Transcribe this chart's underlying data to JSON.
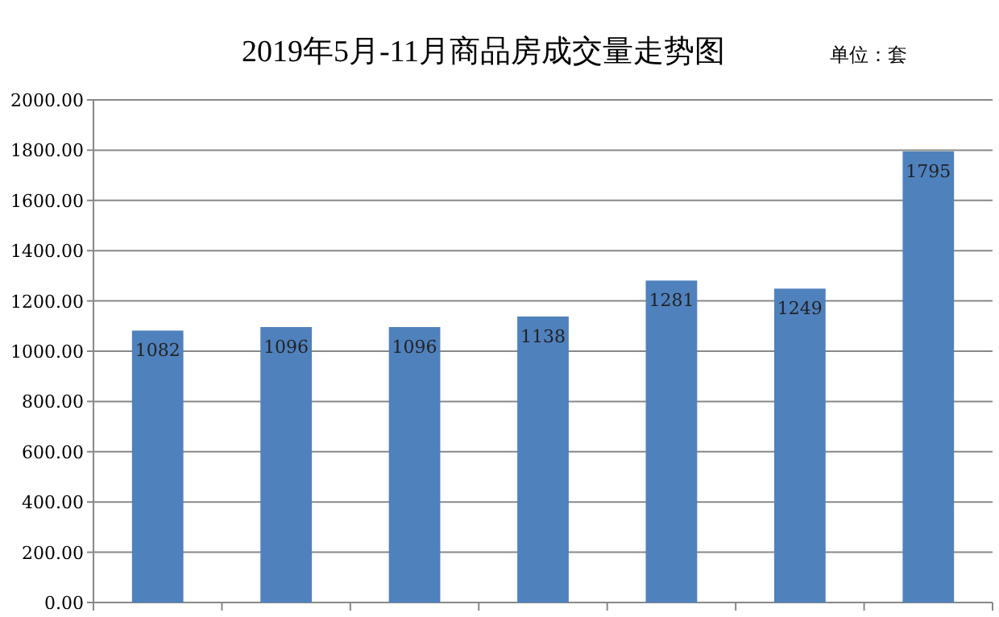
{
  "chart_data": {
    "type": "bar",
    "title": "2019年5月-11月商品房成交量走势图",
    "annotations": [
      "单位：套"
    ],
    "categories": [
      null,
      null,
      null,
      null,
      null,
      null,
      null
    ],
    "values": [
      1082,
      1096,
      1096,
      1138,
      1281,
      1249,
      1795
    ],
    "color": "#4f81bd",
    "data_labels": true,
    "grid": "y",
    "ylim": [
      0,
      2000
    ],
    "yticks": [
      {
        "value": 0,
        "label": "0.00"
      },
      {
        "value": 200,
        "label": "200.00"
      },
      {
        "value": 400,
        "label": "400.00"
      },
      {
        "value": 600,
        "label": "600.00"
      },
      {
        "value": 800,
        "label": "800.00"
      },
      {
        "value": 1000,
        "label": "1000.00"
      },
      {
        "value": 1200,
        "label": "1200.00"
      },
      {
        "value": 1400,
        "label": "1400.00"
      },
      {
        "value": 1600,
        "label": "1600.00"
      },
      {
        "value": 1800,
        "label": "1800.00"
      },
      {
        "value": 2000,
        "label": "2000.00"
      }
    ]
  }
}
